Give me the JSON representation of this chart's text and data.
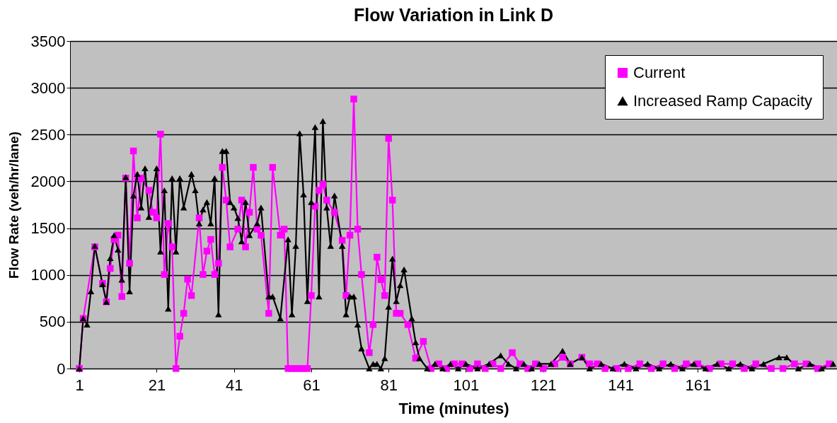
{
  "chart_data": {
    "type": "line",
    "title": "Flow Variation in Link D",
    "xlabel": "Time (minutes)",
    "ylabel": "Flow Rate (veh/hr/lane)",
    "xlim": [
      -1.4,
      197
    ],
    "xticks": [
      1,
      21,
      41,
      61,
      81,
      101,
      121,
      141,
      161
    ],
    "ylim": [
      0,
      3500
    ],
    "yticks": [
      0,
      500,
      1000,
      1500,
      2000,
      2500,
      3000,
      3500
    ],
    "grid": "y",
    "legend": "top right",
    "series": [
      {
        "name": "Current",
        "color": "#ff00ff",
        "marker": "square",
        "x": [
          1,
          2,
          5,
          7,
          8,
          9,
          10,
          11,
          12,
          13,
          14,
          15,
          16,
          17,
          19,
          20,
          21,
          22,
          23,
          24,
          25,
          26,
          27,
          28,
          29,
          30,
          32,
          33,
          34,
          35,
          36,
          37,
          38,
          39,
          40,
          42,
          43,
          44,
          45,
          46,
          47,
          48,
          50,
          51,
          53,
          54,
          55,
          56,
          57,
          58,
          59,
          60,
          61,
          62,
          63,
          64,
          65,
          67,
          69,
          70,
          71,
          72,
          73,
          74,
          76,
          77,
          78,
          79,
          80,
          81,
          82,
          83,
          84,
          86,
          88,
          90,
          92,
          94,
          96,
          98,
          100,
          102,
          104,
          106,
          108,
          110,
          113,
          115,
          117,
          119,
          121,
          124,
          126,
          128,
          131,
          133,
          135,
          137,
          140,
          143,
          146,
          149,
          152,
          155,
          158,
          161,
          164,
          167,
          170,
          173,
          176,
          180,
          183,
          186,
          189,
          192,
          195
        ],
        "values": [
          0,
          535,
          1300,
          910,
          713,
          1070,
          1380,
          1425,
          770,
          2035,
          1125,
          2325,
          1610,
          2035,
          1905,
          1670,
          1610,
          2505,
          1005,
          1550,
          1300,
          0,
          345,
          590,
          955,
          780,
          1610,
          1005,
          1255,
          1380,
          1005,
          1125,
          2150,
          1800,
          1300,
          1490,
          1800,
          1300,
          1670,
          2150,
          1490,
          1425,
          590,
          2150,
          1425,
          1490,
          0,
          0,
          0,
          0,
          0,
          0,
          780,
          1735,
          1905,
          1970,
          1800,
          1670,
          1370,
          780,
          1425,
          2880,
          1490,
          1005,
          170,
          470,
          1190,
          950,
          780,
          2460,
          1800,
          590,
          590,
          470,
          110,
          290,
          0,
          50,
          0,
          50,
          50,
          0,
          50,
          0,
          50,
          0,
          170,
          50,
          0,
          50,
          0,
          50,
          120,
          50,
          120,
          50,
          50,
          0,
          0,
          0,
          50,
          0,
          50,
          0,
          50,
          50,
          0,
          50,
          50,
          0,
          50,
          0,
          0,
          50,
          50,
          0,
          50
        ]
      },
      {
        "name": "Increased Ramp Capacity",
        "color": "#000000",
        "marker": "triangle",
        "x": [
          1,
          2,
          3,
          4,
          5,
          7,
          8,
          9,
          10,
          11,
          12,
          13,
          14,
          15,
          16,
          17,
          18,
          19,
          21,
          22,
          23,
          24,
          25,
          26,
          27,
          28,
          30,
          31,
          32,
          33,
          34,
          35,
          36,
          37,
          38,
          39,
          40,
          41,
          42,
          43,
          44,
          45,
          47,
          48,
          50,
          51,
          53,
          55,
          56,
          57,
          58,
          59,
          60,
          61,
          62,
          63,
          64,
          65,
          66,
          67,
          69,
          70,
          71,
          72,
          73,
          74,
          76,
          77,
          78,
          79,
          80,
          81,
          82,
          83,
          84,
          85,
          87,
          88,
          89,
          91,
          93,
          95,
          97,
          99,
          101,
          104,
          107,
          110,
          112,
          114,
          116,
          118,
          120,
          123,
          126,
          128,
          131,
          133,
          136,
          139,
          142,
          145,
          148,
          151,
          154,
          157,
          160,
          163,
          166,
          169,
          172,
          175,
          178,
          182,
          184,
          187,
          190,
          193,
          196
        ],
        "values": [
          0,
          535,
          470,
          825,
          1310,
          900,
          713,
          1180,
          1425,
          1270,
          950,
          2045,
          825,
          1850,
          2080,
          1720,
          2140,
          1620,
          2140,
          1250,
          1905,
          640,
          2035,
          1250,
          2035,
          1720,
          2080,
          1905,
          1550,
          1700,
          1780,
          1550,
          2035,
          580,
          2325,
          2325,
          1780,
          1720,
          1610,
          1360,
          1780,
          1425,
          1550,
          1720,
          770,
          770,
          535,
          1380,
          580,
          1310,
          2515,
          1860,
          720,
          1780,
          2580,
          770,
          2645,
          1720,
          1310,
          1850,
          1310,
          580,
          770,
          770,
          470,
          215,
          0,
          50,
          50,
          0,
          110,
          660,
          1175,
          720,
          890,
          1060,
          535,
          280,
          110,
          0,
          50,
          0,
          50,
          0,
          50,
          0,
          50,
          140,
          50,
          0,
          50,
          0,
          50,
          50,
          190,
          50,
          120,
          0,
          50,
          0,
          50,
          0,
          50,
          0,
          50,
          0,
          50,
          0,
          50,
          0,
          50,
          0,
          50,
          120,
          120,
          0,
          50,
          0,
          50
        ]
      }
    ]
  }
}
